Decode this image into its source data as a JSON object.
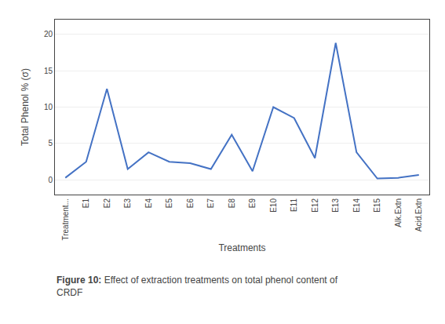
{
  "chart_data": {
    "type": "line",
    "categories": [
      "Treatment...",
      "E1",
      "E2",
      "E3",
      "E4",
      "E5",
      "E6",
      "E7",
      "E8",
      "E9",
      "E10",
      "E11",
      "E12",
      "E13",
      "E14",
      "E15",
      "Alk.Extn",
      "Acid.Extn"
    ],
    "values": [
      0.3,
      2.5,
      12.5,
      1.5,
      3.8,
      2.5,
      2.3,
      1.5,
      6.2,
      1.2,
      10.0,
      8.5,
      3.0,
      18.8,
      3.8,
      0.2,
      0.3,
      0.7
    ],
    "color": "#4472C4",
    "xlabel": "Treatments",
    "ylabel": "Total Phenol % (σ)",
    "ylim": [
      -2,
      22
    ],
    "yticks": [
      0,
      5,
      10,
      15,
      20
    ],
    "grid": true,
    "annotations": [
      "Figure 10:",
      "Effect of extraction treatments on total phenol content of",
      "CRDF"
    ]
  }
}
